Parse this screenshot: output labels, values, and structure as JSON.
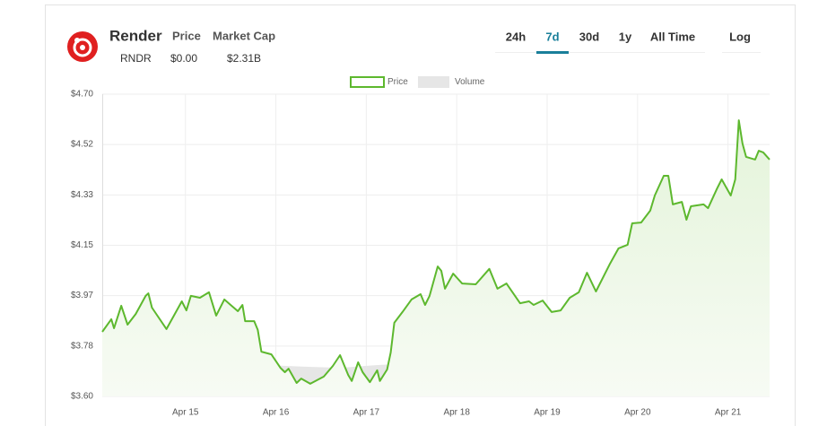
{
  "header": {
    "name": "Render",
    "symbol": "RNDR",
    "price_label": "Price",
    "price": "$0.00",
    "market_cap_label": "Market Cap",
    "market_cap": "$2.31B"
  },
  "controls": {
    "tabs": [
      "24h",
      "7d",
      "30d",
      "1y",
      "All Time"
    ],
    "active_tab": "7d",
    "log_button": "Log"
  },
  "chart_data": {
    "type": "line",
    "xlim": [
      -0.92,
      6.46
    ],
    "xticks": [
      {
        "value": 0,
        "label": "Apr 15"
      },
      {
        "value": 1,
        "label": "Apr 16"
      },
      {
        "value": 2,
        "label": "Apr 17"
      },
      {
        "value": 3,
        "label": "Apr 18"
      },
      {
        "value": 4,
        "label": "Apr 19"
      },
      {
        "value": 5,
        "label": "Apr 20"
      },
      {
        "value": 6,
        "label": "Apr 21"
      }
    ],
    "ylim": [
      3.6,
      4.7
    ],
    "yticks": [
      {
        "value": 3.6,
        "label": "$3.60"
      },
      {
        "value": 3.783,
        "label": "$3.78"
      },
      {
        "value": 3.967,
        "label": "$3.97"
      },
      {
        "value": 4.15,
        "label": "$4.15"
      },
      {
        "value": 4.333,
        "label": "$4.33"
      },
      {
        "value": 4.517,
        "label": "$4.52"
      },
      {
        "value": 4.7,
        "label": "$4.70"
      }
    ],
    "grid": true,
    "series": [
      {
        "name": "Price",
        "color": "#5db82e",
        "x": [
          -0.92,
          -0.82,
          -0.79,
          -0.71,
          -0.64,
          -0.55,
          -0.44,
          -0.41,
          -0.37,
          -0.21,
          -0.04,
          0.01,
          0.06,
          0.16,
          0.26,
          0.34,
          0.43,
          0.58,
          0.63,
          0.66,
          0.76,
          0.8,
          0.84,
          0.95,
          1.05,
          1.1,
          1.14,
          1.23,
          1.28,
          1.38,
          1.53,
          1.63,
          1.71,
          1.8,
          1.84,
          1.91,
          1.96,
          2.04,
          2.12,
          2.15,
          2.23,
          2.27,
          2.31,
          2.4,
          2.5,
          2.6,
          2.65,
          2.7,
          2.79,
          2.83,
          2.87,
          2.96,
          3.06,
          3.21,
          3.36,
          3.45,
          3.55,
          3.7,
          3.8,
          3.85,
          3.95,
          4.05,
          4.15,
          4.25,
          4.35,
          4.44,
          4.54,
          4.69,
          4.79,
          4.89,
          4.94,
          5.04,
          5.14,
          5.19,
          5.29,
          5.34,
          5.39,
          5.49,
          5.54,
          5.59,
          5.73,
          5.78,
          5.88,
          5.93,
          6.03,
          6.08,
          6.12,
          6.16,
          6.2,
          6.3,
          6.34,
          6.39,
          6.46
        ],
        "values": [
          3.835,
          3.881,
          3.848,
          3.93,
          3.861,
          3.9,
          3.966,
          3.975,
          3.923,
          3.845,
          3.946,
          3.913,
          3.966,
          3.959,
          3.979,
          3.894,
          3.953,
          3.91,
          3.933,
          3.874,
          3.874,
          3.842,
          3.763,
          3.753,
          3.704,
          3.688,
          3.701,
          3.649,
          3.665,
          3.646,
          3.672,
          3.711,
          3.75,
          3.678,
          3.656,
          3.724,
          3.688,
          3.652,
          3.695,
          3.656,
          3.698,
          3.76,
          3.868,
          3.907,
          3.953,
          3.972,
          3.933,
          3.966,
          4.073,
          4.057,
          3.992,
          4.047,
          4.011,
          4.008,
          4.064,
          3.992,
          4.011,
          3.939,
          3.946,
          3.933,
          3.949,
          3.907,
          3.913,
          3.959,
          3.979,
          4.05,
          3.982,
          4.08,
          4.139,
          4.152,
          4.23,
          4.233,
          4.276,
          4.331,
          4.403,
          4.403,
          4.299,
          4.308,
          4.243,
          4.292,
          4.299,
          4.285,
          4.357,
          4.39,
          4.331,
          4.39,
          4.605,
          4.52,
          4.472,
          4.462,
          4.494,
          4.488,
          4.462
        ]
      },
      {
        "name": "Volume",
        "color": "#e6e6e6",
        "x": [
          -0.92,
          -0.47,
          -0.07,
          0.33,
          0.72,
          0.92,
          1.32,
          1.72,
          2.11,
          2.51,
          2.91,
          3.5,
          3.9,
          4.3,
          4.7,
          5.09,
          5.49,
          5.89,
          6.13,
          6.46
        ],
        "values": [
          3.698,
          3.721,
          3.734,
          3.727,
          3.724,
          3.714,
          3.708,
          3.704,
          3.714,
          3.721,
          3.724,
          3.718,
          3.672,
          3.662,
          3.665,
          3.685,
          3.714,
          3.727,
          3.75,
          3.737
        ]
      }
    ]
  }
}
